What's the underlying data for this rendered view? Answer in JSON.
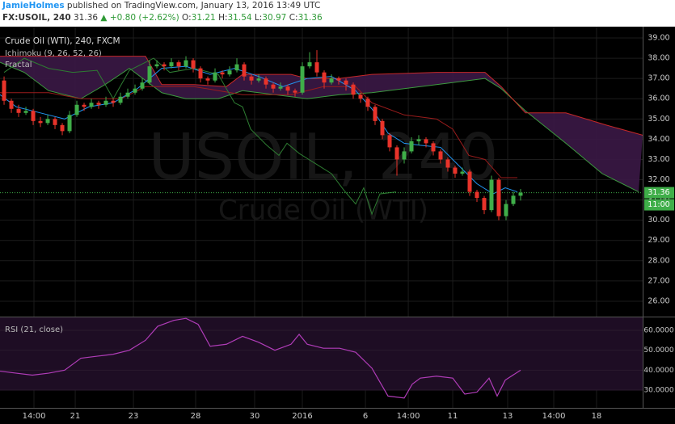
{
  "header": {
    "author": "JamieHolmes",
    "published": "published on TradingView.com, January 13, 2016 13:49 UTC",
    "symbol": "FX:USOIL, 240",
    "price": 31.36,
    "change": "▲ +0.80 (+2.62%)",
    "ohlc": [
      {
        "label": "O:",
        "value": 31.21
      },
      {
        "label": "H:",
        "value": 31.54
      },
      {
        "label": "L:",
        "value": 30.97
      },
      {
        "label": "C:",
        "value": 31.36
      }
    ]
  },
  "chart_data": [
    {
      "type": "candlestick",
      "title": "Crude Oil (WTI), 240, FXCM",
      "indicators": [
        "Ichimoku (9, 26, 52, 26)",
        "Fractal"
      ],
      "watermark": "USOIL, 240",
      "watermark_subtitle": "Crude Oil (WTI)",
      "x": [
        0,
        1,
        2,
        3,
        4,
        5,
        6,
        7,
        8,
        9,
        10,
        11,
        12,
        13,
        14,
        15,
        16,
        17,
        18,
        19,
        20,
        21,
        22,
        23,
        24,
        25,
        26,
        27,
        28,
        29,
        30,
        31,
        32,
        33,
        34,
        35,
        36,
        37,
        38,
        39,
        40,
        41,
        42,
        43,
        44,
        45,
        46,
        47,
        48,
        49,
        50,
        51,
        52,
        53,
        54,
        55,
        56,
        57,
        58,
        59,
        60,
        61,
        62,
        63,
        64,
        65,
        66,
        67,
        68,
        69,
        70,
        71
      ],
      "open": [
        36.9,
        35.9,
        35.5,
        35.3,
        35.4,
        34.9,
        34.8,
        35.0,
        34.7,
        34.4,
        35.2,
        35.7,
        35.6,
        35.8,
        35.7,
        35.9,
        35.8,
        36.1,
        36.3,
        36.5,
        36.8,
        37.6,
        37.7,
        37.6,
        37.8,
        37.6,
        37.9,
        37.5,
        37.0,
        36.9,
        37.3,
        37.2,
        37.4,
        37.7,
        37.1,
        36.9,
        37.0,
        36.7,
        36.5,
        36.6,
        36.4,
        36.3,
        37.6,
        37.8,
        37.3,
        36.8,
        37.0,
        36.9,
        36.7,
        36.2,
        36.0,
        35.6,
        34.9,
        34.2,
        33.6,
        33.0,
        33.4,
        33.9,
        34.0,
        33.8,
        33.4,
        33.0,
        32.6,
        32.3,
        32.4,
        31.4,
        31.1,
        30.5,
        32.0,
        30.2,
        30.8,
        31.21
      ],
      "high": [
        37.1,
        36.0,
        35.7,
        35.6,
        35.5,
        35.1,
        35.2,
        35.1,
        34.8,
        35.4,
        35.9,
        35.8,
        36.0,
        35.9,
        36.1,
        36.0,
        36.3,
        36.5,
        36.7,
        37.0,
        37.9,
        37.9,
        37.8,
        38.0,
        37.9,
        38.1,
        38.0,
        37.6,
        37.1,
        37.5,
        37.4,
        37.6,
        38.0,
        37.8,
        37.2,
        37.2,
        37.1,
        36.8,
        36.8,
        36.7,
        36.5,
        37.8,
        38.3,
        38.4,
        37.4,
        37.2,
        37.1,
        37.0,
        36.8,
        36.3,
        36.1,
        35.7,
        35.0,
        34.3,
        33.7,
        33.6,
        34.1,
        34.2,
        34.1,
        33.9,
        33.5,
        33.1,
        32.7,
        32.6,
        32.5,
        31.5,
        31.2,
        32.2,
        32.1,
        31.0,
        31.4,
        31.54
      ],
      "low": [
        35.7,
        35.3,
        35.1,
        35.2,
        34.7,
        34.6,
        34.7,
        34.5,
        34.2,
        34.3,
        35.1,
        35.4,
        35.5,
        35.5,
        35.6,
        35.6,
        35.7,
        36.0,
        36.2,
        36.4,
        36.7,
        37.5,
        37.4,
        37.5,
        37.4,
        37.5,
        37.3,
        36.8,
        36.7,
        36.8,
        37.0,
        37.1,
        37.3,
        36.9,
        36.7,
        36.8,
        36.5,
        36.3,
        36.4,
        36.2,
        36.1,
        36.2,
        37.5,
        37.1,
        36.5,
        36.7,
        36.7,
        36.4,
        36.0,
        35.8,
        35.4,
        34.7,
        34.0,
        33.4,
        32.2,
        32.8,
        33.3,
        33.7,
        33.6,
        33.2,
        32.8,
        32.4,
        32.1,
        32.2,
        31.2,
        30.9,
        30.3,
        30.4,
        30.0,
        30.0,
        30.7,
        30.97
      ],
      "close": [
        35.9,
        35.5,
        35.3,
        35.4,
        34.9,
        34.8,
        35.0,
        34.7,
        34.4,
        35.2,
        35.7,
        35.6,
        35.8,
        35.7,
        35.9,
        35.8,
        36.1,
        36.3,
        36.5,
        36.8,
        37.6,
        37.7,
        37.6,
        37.8,
        37.6,
        37.9,
        37.5,
        37.0,
        36.9,
        37.3,
        37.2,
        37.4,
        37.7,
        37.1,
        36.9,
        37.0,
        36.7,
        36.5,
        36.6,
        36.4,
        36.3,
        37.6,
        37.8,
        37.3,
        36.8,
        37.0,
        36.9,
        36.7,
        36.2,
        36.0,
        35.6,
        34.9,
        34.2,
        33.6,
        33.0,
        33.4,
        33.9,
        34.0,
        33.8,
        33.4,
        33.0,
        32.6,
        32.3,
        32.4,
        31.4,
        31.1,
        30.5,
        32.0,
        30.2,
        30.8,
        31.21,
        31.36
      ],
      "up_color": "#3fae49",
      "down_color": "#e8332a",
      "cloud_color": "#3b1846",
      "lines": [
        {
          "color": "#3c9a3f",
          "x": [
            -0.56,
            2.78,
            6.11,
            10.56,
            13.89,
            17.22,
            21.67,
            25,
            29.44,
            32.78,
            37.22,
            41.67,
            46.11,
            50.56,
            55,
            59.44,
            66.11,
            68.33,
            71.67,
            77.22,
            82.22,
            87.22
          ],
          "values": [
            37.8,
            37.3,
            36.4,
            36.0,
            36.7,
            37.5,
            36.3,
            36.0,
            36.0,
            36.4,
            36.2,
            36.0,
            36.2,
            36.3,
            36.5,
            36.7,
            37.0,
            36.5,
            35.4,
            33.8,
            32.3,
            31.4
          ]
        },
        {
          "color": "#c62828",
          "x": [
            -0.56,
            19.44,
            21.67,
            26.11,
            30.56,
            32.78,
            39.44,
            41.67,
            46.11,
            50.56,
            59.44,
            66.11,
            68.33,
            71.67,
            77.22,
            82.78,
            87.78
          ],
          "values": [
            38.1,
            38.1,
            36.7,
            36.7,
            36.6,
            37.2,
            37.2,
            37.0,
            37.0,
            37.2,
            37.3,
            37.3,
            36.6,
            35.3,
            35.3,
            34.7,
            34.2
          ]
        },
        {
          "color": "#9b1c1c",
          "x": [
            -0.56,
            6.11,
            10.56,
            16.11,
            19.44,
            26.11,
            32.78,
            39.44,
            43.89,
            48.33,
            50.56,
            55,
            59.44,
            61.67,
            63.89,
            66.11,
            68.33,
            70.56
          ],
          "values": [
            36.3,
            36.3,
            36.0,
            36.0,
            36.6,
            36.6,
            36.2,
            36.2,
            36.6,
            36.6,
            35.8,
            35.2,
            35.0,
            34.5,
            33.2,
            33.0,
            32.1,
            32.1
          ]
        },
        {
          "color": "#2196f3",
          "x": [
            -0.56,
            1.67,
            5,
            8.33,
            11.67,
            15,
            18.33,
            21.67,
            25,
            28.33,
            31.67,
            35,
            38.33,
            41.67,
            45,
            48.33,
            50.56,
            52.78,
            55,
            57.22,
            60,
            62.78,
            65,
            67.22,
            68.89,
            70.56
          ],
          "values": [
            36.2,
            35.6,
            35.3,
            35.0,
            35.6,
            35.8,
            36.5,
            37.5,
            37.6,
            37.2,
            37.5,
            37.1,
            36.6,
            37.0,
            37.1,
            36.4,
            35.5,
            34.3,
            33.8,
            33.7,
            33.6,
            32.6,
            31.8,
            31.3,
            31.6,
            31.4
          ]
        },
        {
          "color": "#2e7d32",
          "x": [
            0,
            2.78,
            6.11,
            9.44,
            12.78,
            15,
            17.22,
            20.56,
            22.78,
            26.11,
            29.44,
            31.67,
            32.78,
            33.89,
            36.11,
            37.78,
            38.89,
            40.56,
            42.78,
            45,
            46.67,
            48.33,
            49.44,
            50.56,
            51.67,
            53.89
          ],
          "values": [
            37.3,
            38.0,
            37.5,
            37.3,
            37.4,
            36.0,
            37.4,
            38.0,
            37.3,
            37.5,
            37.2,
            35.8,
            35.6,
            34.5,
            33.7,
            33.2,
            33.8,
            33.3,
            32.8,
            32.3,
            31.5,
            30.8,
            31.6,
            30.3,
            31.3,
            31.4
          ]
        }
      ],
      "xlim": [
        -0.56,
        87.78
      ],
      "ylim": [
        25.24,
        39.56
      ],
      "xticks": [
        {
          "value": 4.11,
          "label": "14:00"
        },
        {
          "value": 9.78,
          "label": "21"
        },
        {
          "value": 17.78,
          "label": "23"
        },
        {
          "value": 26.33,
          "label": "28"
        },
        {
          "value": 34.44,
          "label": "30"
        },
        {
          "value": 41,
          "label": "2016"
        },
        {
          "value": 49.67,
          "label": "6"
        },
        {
          "value": 55.56,
          "label": "14:00"
        },
        {
          "value": 61.67,
          "label": "11"
        },
        {
          "value": 69.22,
          "label": "13"
        },
        {
          "value": 75.56,
          "label": "14:00"
        },
        {
          "value": 81.44,
          "label": "18"
        }
      ],
      "yticks": [
        {
          "value": 26,
          "label": "26.00"
        },
        {
          "value": 27,
          "label": "27.00"
        },
        {
          "value": 28,
          "label": "28.00"
        },
        {
          "value": 29,
          "label": "29.00"
        },
        {
          "value": 30,
          "label": "30.00"
        },
        {
          "value": 31,
          "label": "31.00"
        },
        {
          "value": 32,
          "label": "32.00"
        },
        {
          "value": 33,
          "label": "33.00"
        },
        {
          "value": 34,
          "label": "34.00"
        },
        {
          "value": 35,
          "label": "35.00"
        },
        {
          "value": 36,
          "label": "36.00"
        },
        {
          "value": 37,
          "label": "37.00"
        },
        {
          "value": 38,
          "label": "38.00"
        },
        {
          "value": 39,
          "label": "39.00"
        }
      ],
      "grid": true,
      "last_price": 31.36,
      "price_line_color": "#3fae49",
      "countdown": "11:00"
    },
    {
      "type": "line",
      "title": "RSI (21, close)",
      "x": [
        -0.56,
        1.67,
        3.89,
        6.11,
        8.33,
        10.56,
        12.78,
        15,
        17.22,
        19.44,
        21.11,
        23.33,
        25,
        26.67,
        28.33,
        30.56,
        32.78,
        35,
        37.22,
        39.44,
        40.56,
        41.67,
        43.89,
        46.11,
        48.33,
        50.56,
        52.78,
        55,
        56.11,
        57.22,
        59.44,
        61.67,
        63.33,
        65,
        66.67,
        67.78,
        68.89,
        71
      ],
      "values": [
        39.5,
        38.5,
        37.5,
        38.5,
        40,
        46,
        47,
        48,
        50,
        55,
        62,
        65,
        66,
        63,
        52,
        53,
        57,
        54,
        50,
        53,
        58,
        53,
        51,
        51,
        49,
        41,
        27,
        26,
        33,
        36,
        37,
        36,
        28,
        29,
        36,
        27,
        35,
        40
      ],
      "color": "#b03cb8",
      "band": [
        30,
        70
      ],
      "band_color": "#1e0d24",
      "xlim": [
        -0.56,
        87.78
      ],
      "ylim": [
        21.08,
        66.49
      ],
      "yticks": [
        {
          "value": 30,
          "label": "30.0000"
        },
        {
          "value": 40,
          "label": "40.0000"
        },
        {
          "value": 50,
          "label": "50.0000"
        },
        {
          "value": 60,
          "label": "60.0000"
        }
      ],
      "grid": true
    }
  ]
}
